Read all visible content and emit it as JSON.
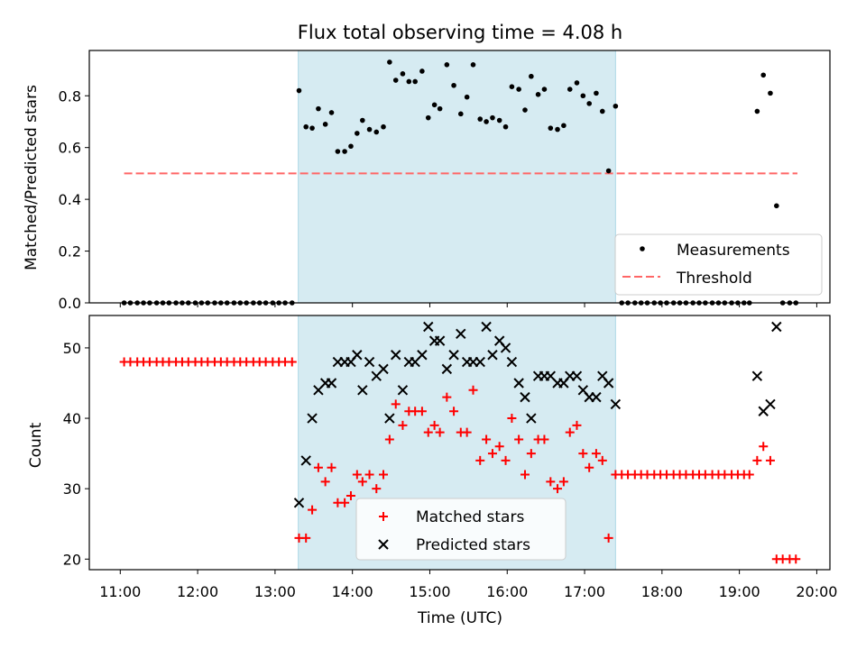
{
  "title": "Flux total observing time = 4.08 h",
  "chart_data": [
    {
      "type": "scatter",
      "ylabel": "Matched/Predicted stars",
      "xlabel": "",
      "xlim": [
        10.6,
        20.17
      ],
      "ylim": [
        0,
        0.975
      ],
      "yticks": [
        "0.0",
        "0.2",
        "0.4",
        "0.6",
        "0.8"
      ],
      "ytick_values": [
        0,
        0.2,
        0.4,
        0.6,
        0.8
      ],
      "highlight_span": [
        13.3,
        17.4
      ],
      "threshold": {
        "name": "Threshold",
        "value": 0.5,
        "x_range": [
          11.05,
          19.75
        ],
        "color": "#ff6666"
      },
      "legend": {
        "position": "bottom-right",
        "entries": [
          "Measurements",
          "Threshold"
        ]
      },
      "series": [
        {
          "name": "Measurements",
          "color": "#000000",
          "marker": "dot",
          "points": [
            [
              11.05,
              0
            ],
            [
              11.13,
              0
            ],
            [
              11.22,
              0
            ],
            [
              11.3,
              0
            ],
            [
              11.38,
              0
            ],
            [
              11.47,
              0
            ],
            [
              11.55,
              0
            ],
            [
              11.63,
              0
            ],
            [
              11.72,
              0
            ],
            [
              11.8,
              0
            ],
            [
              11.88,
              0
            ],
            [
              11.97,
              0
            ],
            [
              12.05,
              0
            ],
            [
              12.13,
              0
            ],
            [
              12.22,
              0
            ],
            [
              12.3,
              0
            ],
            [
              12.38,
              0
            ],
            [
              12.47,
              0
            ],
            [
              12.55,
              0
            ],
            [
              12.63,
              0
            ],
            [
              12.72,
              0
            ],
            [
              12.8,
              0
            ],
            [
              12.88,
              0
            ],
            [
              12.97,
              0
            ],
            [
              13.05,
              0
            ],
            [
              13.13,
              0
            ],
            [
              13.22,
              0
            ],
            [
              13.31,
              0.82
            ],
            [
              13.4,
              0.68
            ],
            [
              13.48,
              0.675
            ],
            [
              13.56,
              0.75
            ],
            [
              13.65,
              0.69
            ],
            [
              13.73,
              0.735
            ],
            [
              13.81,
              0.585
            ],
            [
              13.9,
              0.585
            ],
            [
              13.98,
              0.605
            ],
            [
              14.06,
              0.655
            ],
            [
              14.13,
              0.705
            ],
            [
              14.22,
              0.67
            ],
            [
              14.31,
              0.66
            ],
            [
              14.4,
              0.68
            ],
            [
              14.48,
              0.93
            ],
            [
              14.56,
              0.86
            ],
            [
              14.65,
              0.885
            ],
            [
              14.73,
              0.855
            ],
            [
              14.81,
              0.855
            ],
            [
              14.9,
              0.895
            ],
            [
              14.98,
              0.715
            ],
            [
              15.06,
              0.765
            ],
            [
              15.13,
              0.75
            ],
            [
              15.22,
              0.92
            ],
            [
              15.31,
              0.84
            ],
            [
              15.4,
              0.73
            ],
            [
              15.48,
              0.795
            ],
            [
              15.56,
              0.92
            ],
            [
              15.65,
              0.71
            ],
            [
              15.73,
              0.7
            ],
            [
              15.81,
              0.715
            ],
            [
              15.9,
              0.705
            ],
            [
              15.98,
              0.68
            ],
            [
              16.06,
              0.835
            ],
            [
              16.15,
              0.825
            ],
            [
              16.23,
              0.745
            ],
            [
              16.31,
              0.875
            ],
            [
              16.4,
              0.805
            ],
            [
              16.48,
              0.825
            ],
            [
              16.56,
              0.675
            ],
            [
              16.65,
              0.67
            ],
            [
              16.73,
              0.685
            ],
            [
              16.81,
              0.825
            ],
            [
              16.9,
              0.85
            ],
            [
              16.98,
              0.8
            ],
            [
              17.06,
              0.77
            ],
            [
              17.15,
              0.81
            ],
            [
              17.23,
              0.74
            ],
            [
              17.31,
              0.51
            ],
            [
              17.4,
              0.76
            ],
            [
              17.48,
              0
            ],
            [
              17.56,
              0
            ],
            [
              17.65,
              0
            ],
            [
              17.73,
              0
            ],
            [
              17.81,
              0
            ],
            [
              17.9,
              0
            ],
            [
              17.98,
              0
            ],
            [
              18.06,
              0
            ],
            [
              18.15,
              0
            ],
            [
              18.23,
              0
            ],
            [
              18.31,
              0
            ],
            [
              18.4,
              0
            ],
            [
              18.48,
              0
            ],
            [
              18.56,
              0
            ],
            [
              18.65,
              0
            ],
            [
              18.73,
              0
            ],
            [
              18.81,
              0
            ],
            [
              18.9,
              0
            ],
            [
              18.98,
              0
            ],
            [
              19.06,
              0
            ],
            [
              19.13,
              0
            ],
            [
              19.23,
              0.74
            ],
            [
              19.31,
              0.88
            ],
            [
              19.4,
              0.81
            ],
            [
              19.48,
              0.375
            ],
            [
              19.56,
              0
            ],
            [
              19.65,
              0
            ],
            [
              19.73,
              0
            ]
          ]
        }
      ]
    },
    {
      "type": "scatter",
      "ylabel": "Count",
      "xlabel": "Time (UTC)",
      "xlim": [
        10.6,
        20.17
      ],
      "ylim": [
        18.5,
        54.6
      ],
      "yticks": [
        "20",
        "30",
        "40",
        "50"
      ],
      "ytick_values": [
        20,
        30,
        40,
        50
      ],
      "xticks": [
        "11:00",
        "12:00",
        "13:00",
        "14:00",
        "15:00",
        "16:00",
        "17:00",
        "18:00",
        "19:00",
        "20:00"
      ],
      "xtick_values": [
        11,
        12,
        13,
        14,
        15,
        16,
        17,
        18,
        19,
        20
      ],
      "highlight_span": [
        13.3,
        17.4
      ],
      "legend": {
        "position": "bottom-center",
        "entries": [
          "Matched stars",
          "Predicted stars"
        ]
      },
      "series": [
        {
          "name": "Matched stars",
          "color": "#ff0000",
          "marker": "plus",
          "points": [
            [
              11.05,
              48
            ],
            [
              11.13,
              48
            ],
            [
              11.22,
              48
            ],
            [
              11.3,
              48
            ],
            [
              11.38,
              48
            ],
            [
              11.47,
              48
            ],
            [
              11.55,
              48
            ],
            [
              11.63,
              48
            ],
            [
              11.72,
              48
            ],
            [
              11.8,
              48
            ],
            [
              11.88,
              48
            ],
            [
              11.97,
              48
            ],
            [
              12.05,
              48
            ],
            [
              12.13,
              48
            ],
            [
              12.22,
              48
            ],
            [
              12.3,
              48
            ],
            [
              12.38,
              48
            ],
            [
              12.47,
              48
            ],
            [
              12.55,
              48
            ],
            [
              12.63,
              48
            ],
            [
              12.72,
              48
            ],
            [
              12.8,
              48
            ],
            [
              12.88,
              48
            ],
            [
              12.97,
              48
            ],
            [
              13.05,
              48
            ],
            [
              13.13,
              48
            ],
            [
              13.22,
              48
            ],
            [
              13.31,
              23
            ],
            [
              13.4,
              23
            ],
            [
              13.48,
              27
            ],
            [
              13.56,
              33
            ],
            [
              13.65,
              31
            ],
            [
              13.73,
              33
            ],
            [
              13.81,
              28
            ],
            [
              13.9,
              28
            ],
            [
              13.98,
              29
            ],
            [
              14.06,
              32
            ],
            [
              14.13,
              31
            ],
            [
              14.22,
              32
            ],
            [
              14.31,
              30
            ],
            [
              14.4,
              32
            ],
            [
              14.48,
              37
            ],
            [
              14.56,
              42
            ],
            [
              14.65,
              39
            ],
            [
              14.73,
              41
            ],
            [
              14.81,
              41
            ],
            [
              14.9,
              41
            ],
            [
              14.98,
              38
            ],
            [
              15.06,
              39
            ],
            [
              15.13,
              38
            ],
            [
              15.22,
              43
            ],
            [
              15.31,
              41
            ],
            [
              15.4,
              38
            ],
            [
              15.48,
              38
            ],
            [
              15.56,
              44
            ],
            [
              15.65,
              34
            ],
            [
              15.73,
              37
            ],
            [
              15.81,
              35
            ],
            [
              15.9,
              36
            ],
            [
              15.98,
              34
            ],
            [
              16.06,
              40
            ],
            [
              16.15,
              37
            ],
            [
              16.23,
              32
            ],
            [
              16.31,
              35
            ],
            [
              16.4,
              37
            ],
            [
              16.48,
              37
            ],
            [
              16.56,
              31
            ],
            [
              16.65,
              30
            ],
            [
              16.73,
              31
            ],
            [
              16.81,
              38
            ],
            [
              16.9,
              39
            ],
            [
              16.98,
              35
            ],
            [
              17.06,
              33
            ],
            [
              17.15,
              35
            ],
            [
              17.23,
              34
            ],
            [
              17.31,
              23
            ],
            [
              17.4,
              32
            ],
            [
              17.48,
              32
            ],
            [
              17.56,
              32
            ],
            [
              17.65,
              32
            ],
            [
              17.73,
              32
            ],
            [
              17.81,
              32
            ],
            [
              17.9,
              32
            ],
            [
              17.98,
              32
            ],
            [
              18.06,
              32
            ],
            [
              18.15,
              32
            ],
            [
              18.23,
              32
            ],
            [
              18.31,
              32
            ],
            [
              18.4,
              32
            ],
            [
              18.48,
              32
            ],
            [
              18.56,
              32
            ],
            [
              18.65,
              32
            ],
            [
              18.73,
              32
            ],
            [
              18.81,
              32
            ],
            [
              18.9,
              32
            ],
            [
              18.98,
              32
            ],
            [
              19.06,
              32
            ],
            [
              19.13,
              32
            ],
            [
              19.23,
              34
            ],
            [
              19.31,
              36
            ],
            [
              19.4,
              34
            ],
            [
              19.48,
              20
            ],
            [
              19.56,
              20
            ],
            [
              19.65,
              20
            ],
            [
              19.73,
              20
            ]
          ]
        },
        {
          "name": "Predicted stars",
          "color": "#000000",
          "marker": "x",
          "points": [
            [
              13.31,
              28
            ],
            [
              13.4,
              34
            ],
            [
              13.48,
              40
            ],
            [
              13.56,
              44
            ],
            [
              13.65,
              45
            ],
            [
              13.73,
              45
            ],
            [
              13.81,
              48
            ],
            [
              13.9,
              48
            ],
            [
              13.98,
              48
            ],
            [
              14.06,
              49
            ],
            [
              14.13,
              44
            ],
            [
              14.22,
              48
            ],
            [
              14.31,
              46
            ],
            [
              14.4,
              47
            ],
            [
              14.48,
              40
            ],
            [
              14.56,
              49
            ],
            [
              14.65,
              44
            ],
            [
              14.73,
              48
            ],
            [
              14.81,
              48
            ],
            [
              14.9,
              49
            ],
            [
              14.98,
              53
            ],
            [
              15.06,
              51
            ],
            [
              15.13,
              51
            ],
            [
              15.22,
              47
            ],
            [
              15.31,
              49
            ],
            [
              15.4,
              52
            ],
            [
              15.48,
              48
            ],
            [
              15.56,
              48
            ],
            [
              15.65,
              48
            ],
            [
              15.73,
              53
            ],
            [
              15.81,
              49
            ],
            [
              15.9,
              51
            ],
            [
              15.98,
              50
            ],
            [
              16.06,
              48
            ],
            [
              16.15,
              45
            ],
            [
              16.23,
              43
            ],
            [
              16.31,
              40
            ],
            [
              16.4,
              46
            ],
            [
              16.48,
              46
            ],
            [
              16.56,
              46
            ],
            [
              16.65,
              45
            ],
            [
              16.73,
              45
            ],
            [
              16.81,
              46
            ],
            [
              16.9,
              46
            ],
            [
              16.98,
              44
            ],
            [
              17.06,
              43
            ],
            [
              17.15,
              43
            ],
            [
              17.23,
              46
            ],
            [
              17.31,
              45
            ],
            [
              17.4,
              42
            ],
            [
              19.23,
              46
            ],
            [
              19.31,
              41
            ],
            [
              19.4,
              42
            ],
            [
              19.48,
              53
            ]
          ]
        }
      ]
    }
  ]
}
